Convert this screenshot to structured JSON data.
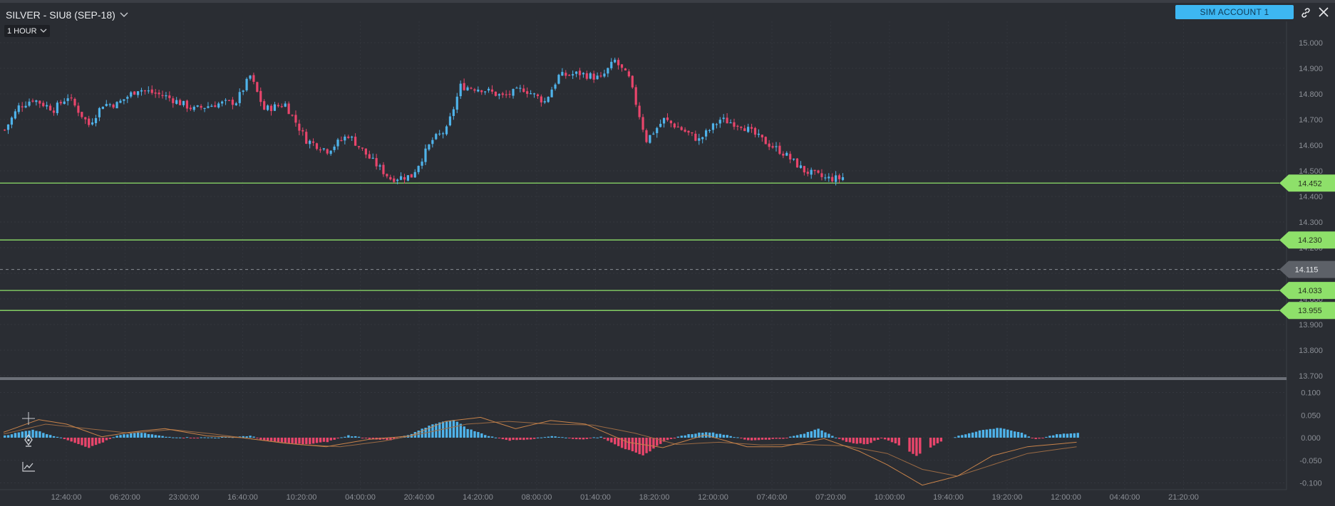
{
  "header": {
    "title": "SILVER - SIU8 (SEP-18)",
    "interval": "1 HOUR",
    "account": "SIM ACCOUNT 1",
    "icons": [
      "chevron-down-icon",
      "link-icon",
      "close-icon",
      "crosshair-icon",
      "pen-icon",
      "indicator-icon"
    ]
  },
  "colors": {
    "background": "#2a2d33",
    "bull": "#4fb3ea",
    "bear": "#e8456b",
    "level": "#8ee06a",
    "current": "#5d6168",
    "signal": "#c8834a"
  },
  "chart_data": [
    {
      "type": "candlestick",
      "interval": "1 HOUR",
      "ylim": [
        13.66,
        15.04
      ],
      "y_ticks": [
        "15.000",
        "14.900",
        "14.800",
        "14.700",
        "14.600",
        "14.500",
        "14.400",
        "14.300",
        "14.200",
        "14.100",
        "14.000",
        "13.900",
        "13.800",
        "13.700"
      ],
      "x_ticks": [
        "12:40:00",
        "06:20:00",
        "23:00:00",
        "16:40:00",
        "10:20:00",
        "04:00:00",
        "20:40:00",
        "14:20:00",
        "08:00:00",
        "01:40:00",
        "18:20:00",
        "12:00:00",
        "07:40:00",
        "07:20:00",
        "10:00:00",
        "19:40:00",
        "19:20:00",
        "12:00:00",
        "04:40:00",
        "21:20:00"
      ],
      "price_levels": [
        "14.452",
        "14.230",
        "14.033",
        "13.955"
      ],
      "current_price": "14.115",
      "candle_count": 240,
      "anchors": [
        [
          0,
          14.66
        ],
        [
          4,
          14.75
        ],
        [
          8,
          14.78
        ],
        [
          14,
          14.74
        ],
        [
          18,
          14.79
        ],
        [
          24,
          14.68
        ],
        [
          28,
          14.76
        ],
        [
          32,
          14.76
        ],
        [
          38,
          14.82
        ],
        [
          46,
          14.79
        ],
        [
          54,
          14.74
        ],
        [
          60,
          14.76
        ],
        [
          66,
          14.77
        ],
        [
          70,
          14.87
        ],
        [
          74,
          14.74
        ],
        [
          80,
          14.76
        ],
        [
          86,
          14.62
        ],
        [
          92,
          14.58
        ],
        [
          98,
          14.64
        ],
        [
          104,
          14.55
        ],
        [
          110,
          14.47
        ],
        [
          116,
          14.48
        ],
        [
          122,
          14.62
        ],
        [
          126,
          14.66
        ],
        [
          130,
          14.83
        ],
        [
          136,
          14.82
        ],
        [
          142,
          14.79
        ],
        [
          148,
          14.82
        ],
        [
          154,
          14.77
        ],
        [
          158,
          14.87
        ],
        [
          164,
          14.88
        ],
        [
          170,
          14.86
        ],
        [
          174,
          14.93
        ],
        [
          178,
          14.86
        ],
        [
          183,
          14.62
        ],
        [
          188,
          14.7
        ],
        [
          192,
          14.67
        ],
        [
          198,
          14.62
        ],
        [
          204,
          14.7
        ],
        [
          210,
          14.68
        ],
        [
          216,
          14.62
        ],
        [
          222,
          14.57
        ],
        [
          228,
          14.5
        ],
        [
          234,
          14.47
        ],
        [
          238,
          14.47
        ],
        [
          244,
          14.5
        ],
        [
          246,
          14.55
        ],
        [
          252,
          14.49
        ],
        [
          258,
          14.42
        ],
        [
          264,
          14.4
        ],
        [
          270,
          14.42
        ],
        [
          274,
          14.33
        ],
        [
          278,
          14.23
        ],
        [
          282,
          14.01
        ],
        [
          286,
          14.04
        ],
        [
          292,
          14.05
        ],
        [
          298,
          14.07
        ],
        [
          302,
          14.14
        ],
        [
          306,
          14.12
        ],
        [
          312,
          14.07
        ],
        [
          318,
          14.09
        ],
        [
          322,
          14.06
        ],
        [
          328,
          14.1
        ],
        [
          332,
          14.12
        ]
      ],
      "gaps": [
        [
          253,
          258
        ],
        [
          261,
          264
        ],
        [
          267,
          271
        ],
        [
          307,
          310
        ],
        [
          325,
          327
        ]
      ]
    },
    {
      "type": "histogram",
      "indicator": "MACD",
      "ylim": [
        -0.11,
        0.11
      ],
      "y_ticks": [
        "0.100",
        "0.050",
        "0.000",
        "-0.050",
        "-0.100"
      ],
      "histogram_anchors": [
        [
          0,
          0.005
        ],
        [
          8,
          0.018
        ],
        [
          14,
          0.004
        ],
        [
          18,
          -0.005
        ],
        [
          24,
          -0.022
        ],
        [
          28,
          -0.01
        ],
        [
          32,
          0.004
        ],
        [
          38,
          0.012
        ],
        [
          46,
          0.002
        ],
        [
          54,
          0.0
        ],
        [
          62,
          0.001
        ],
        [
          70,
          0.004
        ],
        [
          74,
          -0.006
        ],
        [
          80,
          -0.012
        ],
        [
          86,
          -0.015
        ],
        [
          92,
          -0.009
        ],
        [
          98,
          0.005
        ],
        [
          104,
          -0.002
        ],
        [
          110,
          -0.006
        ],
        [
          116,
          0.008
        ],
        [
          122,
          0.03
        ],
        [
          128,
          0.04
        ],
        [
          132,
          0.02
        ],
        [
          138,
          0.004
        ],
        [
          144,
          -0.006
        ],
        [
          150,
          -0.003
        ],
        [
          156,
          0.004
        ],
        [
          164,
          -0.004
        ],
        [
          170,
          0.002
        ],
        [
          176,
          -0.022
        ],
        [
          182,
          -0.04
        ],
        [
          188,
          -0.008
        ],
        [
          194,
          0.006
        ],
        [
          200,
          0.013
        ],
        [
          206,
          0.006
        ],
        [
          212,
          -0.006
        ],
        [
          222,
          -0.002
        ],
        [
          228,
          0.009
        ],
        [
          232,
          0.02
        ],
        [
          236,
          0.005
        ],
        [
          240,
          -0.01
        ],
        [
          246,
          -0.015
        ],
        [
          250,
          0.0
        ],
        [
          256,
          -0.02
        ],
        [
          260,
          -0.04
        ],
        [
          266,
          -0.012
        ],
        [
          272,
          0.004
        ],
        [
          278,
          0.016
        ],
        [
          284,
          0.022
        ],
        [
          290,
          0.01
        ],
        [
          294,
          -0.004
        ],
        [
          300,
          0.008
        ],
        [
          306,
          0.01
        ]
      ],
      "line_anchors": [
        [
          0,
          0.012
        ],
        [
          10,
          0.04
        ],
        [
          18,
          0.03
        ],
        [
          28,
          0.002
        ],
        [
          36,
          0.012
        ],
        [
          46,
          0.02
        ],
        [
          58,
          0.004
        ],
        [
          68,
          0.0
        ],
        [
          80,
          -0.012
        ],
        [
          92,
          -0.02
        ],
        [
          104,
          -0.004
        ],
        [
          116,
          0.004
        ],
        [
          126,
          0.036
        ],
        [
          136,
          0.045
        ],
        [
          146,
          0.02
        ],
        [
          156,
          0.038
        ],
        [
          166,
          0.03
        ],
        [
          178,
          -0.01
        ],
        [
          188,
          -0.022
        ],
        [
          200,
          0.006
        ],
        [
          212,
          -0.02
        ],
        [
          222,
          -0.02
        ],
        [
          234,
          -0.002
        ],
        [
          244,
          -0.03
        ],
        [
          252,
          -0.06
        ],
        [
          262,
          -0.105
        ],
        [
          272,
          -0.085
        ],
        [
          282,
          -0.04
        ],
        [
          292,
          -0.02
        ],
        [
          306,
          -0.01
        ]
      ],
      "signal_anchors": [
        [
          0,
          0.008
        ],
        [
          12,
          0.03
        ],
        [
          24,
          0.02
        ],
        [
          36,
          0.01
        ],
        [
          48,
          0.018
        ],
        [
          60,
          0.008
        ],
        [
          72,
          -0.004
        ],
        [
          84,
          -0.015
        ],
        [
          96,
          -0.02
        ],
        [
          108,
          -0.008
        ],
        [
          120,
          0.01
        ],
        [
          132,
          0.03
        ],
        [
          144,
          0.036
        ],
        [
          156,
          0.03
        ],
        [
          168,
          0.028
        ],
        [
          180,
          0.01
        ],
        [
          192,
          -0.015
        ],
        [
          204,
          -0.01
        ],
        [
          216,
          -0.016
        ],
        [
          228,
          -0.015
        ],
        [
          240,
          -0.018
        ],
        [
          252,
          -0.035
        ],
        [
          262,
          -0.07
        ],
        [
          272,
          -0.085
        ],
        [
          282,
          -0.06
        ],
        [
          292,
          -0.035
        ],
        [
          306,
          -0.02
        ]
      ]
    }
  ]
}
